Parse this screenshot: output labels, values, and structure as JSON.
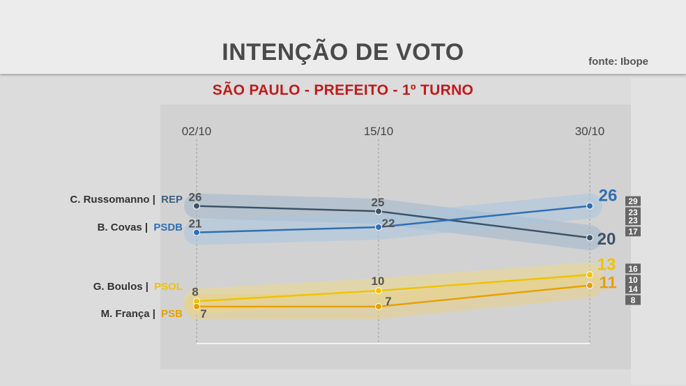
{
  "header": {
    "title": "INTENÇÃO DE VOTO",
    "source": "fonte: Ibope",
    "subtitle": "SÃO PAULO - PREFEITO - 1º TURNO"
  },
  "legend": [
    {
      "name": "C. Russomanno",
      "party": "REP",
      "party_color": "#3b5f82"
    },
    {
      "name": "B. Covas",
      "party": "PSDB",
      "party_color": "#2f6fb3"
    },
    {
      "name": "G. Boulos",
      "party": "PSOL",
      "party_color": "#f2c200"
    },
    {
      "name": "M. França",
      "party": "PSB",
      "party_color": "#e6a100"
    }
  ],
  "chart_data": {
    "type": "line",
    "x": [
      "02/10",
      "15/10",
      "30/10"
    ],
    "ylim": [
      0,
      35
    ],
    "series": [
      {
        "name": "C. Russomanno",
        "values": [
          26,
          25,
          20
        ],
        "color": "#3e5266",
        "band_color": "#9fb6cc",
        "margin_low": [
          22,
          21,
          17
        ],
        "margin_high": [
          29,
          28,
          23
        ],
        "final_interval": [
          "23",
          "17"
        ]
      },
      {
        "name": "B. Covas",
        "values": [
          21,
          22,
          26
        ],
        "color": "#2f6fb3",
        "band_color": "#a9c4df",
        "margin_low": [
          18,
          19,
          23
        ],
        "margin_high": [
          24,
          25,
          29
        ],
        "final_interval": [
          "29",
          "23"
        ]
      },
      {
        "name": "G. Boulos",
        "values": [
          8,
          10,
          13
        ],
        "color": "#f2c200",
        "band_color": "#ecd98a",
        "margin_low": [
          5,
          7,
          10
        ],
        "margin_high": [
          11,
          13,
          16
        ],
        "final_interval": [
          "16",
          "10"
        ]
      },
      {
        "name": "M. França",
        "values": [
          7,
          7,
          11
        ],
        "color": "#e6a100",
        "band_color": "#e8cf87",
        "margin_low": [
          4,
          4,
          8
        ],
        "margin_high": [
          10,
          10,
          14
        ],
        "final_interval": [
          "14",
          "8"
        ]
      }
    ]
  }
}
